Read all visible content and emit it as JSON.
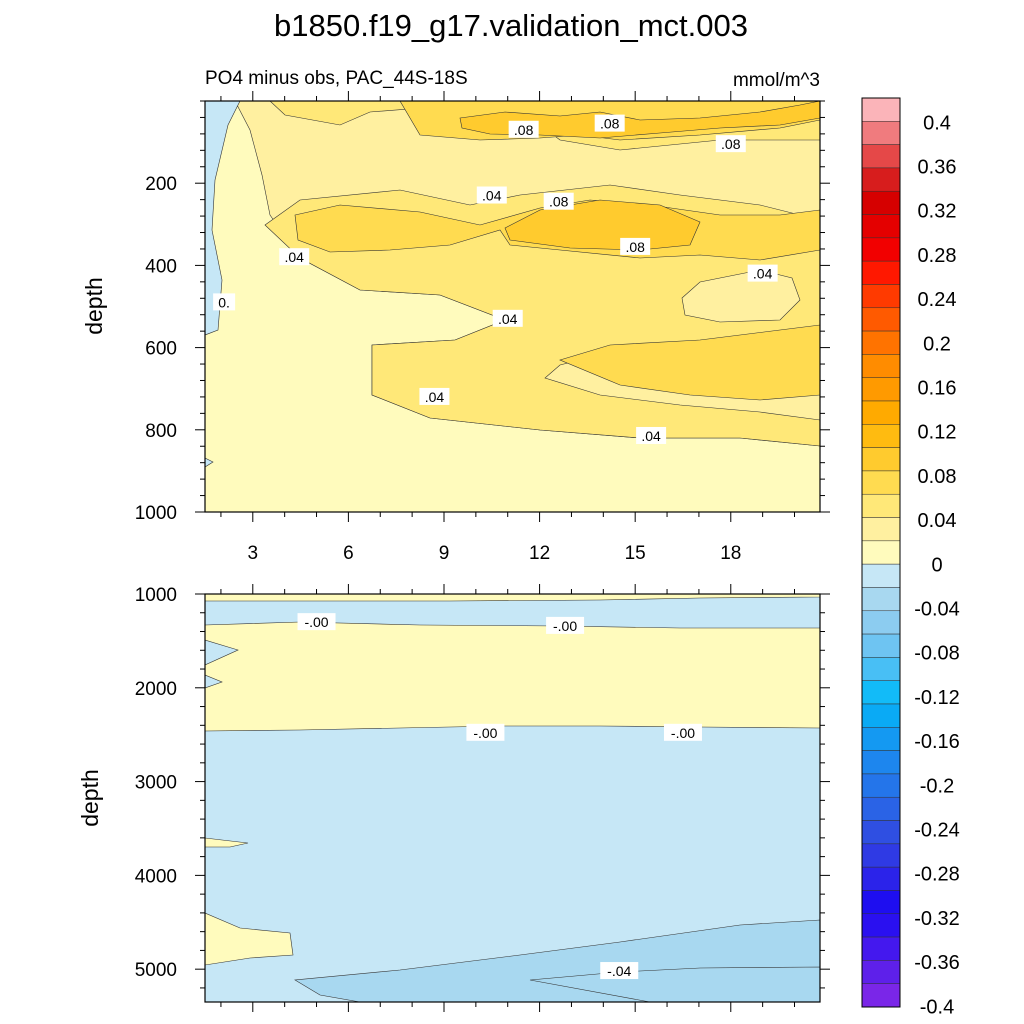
{
  "title": "b1850.f19_g17.validation_mct.003",
  "subtitle_left": "PO4 minus obs, PAC_44S-18S",
  "subtitle_right": "mmol/m^3",
  "chart_data": [
    {
      "type": "heatmap",
      "ylabel": "depth",
      "xlim": [
        1.5,
        20.8
      ],
      "ylim": [
        0,
        1000
      ],
      "y_inverted": true,
      "xticks": [
        "3",
        "6",
        "9",
        "12",
        "15",
        "18"
      ],
      "xtick_values": [
        3,
        6,
        9,
        12,
        15,
        18
      ],
      "yticks": [
        "200",
        "400",
        "600",
        "800",
        "1000"
      ],
      "ytick_values": [
        200,
        400,
        600,
        800,
        1000
      ],
      "contour_labels": [
        {
          "text": ".08",
          "x": 11.5,
          "y": 70
        },
        {
          "text": ".08",
          "x": 14.2,
          "y": 55
        },
        {
          "text": ".08",
          "x": 18.0,
          "y": 105
        },
        {
          "text": ".04",
          "x": 10.5,
          "y": 230
        },
        {
          "text": ".08",
          "x": 12.6,
          "y": 245
        },
        {
          "text": ".08",
          "x": 15.0,
          "y": 355
        },
        {
          "text": ".04",
          "x": 4.3,
          "y": 380
        },
        {
          "text": ".04",
          "x": 19.0,
          "y": 420
        },
        {
          "text": "0.",
          "x": 2.1,
          "y": 490
        },
        {
          "text": ".04",
          "x": 11.0,
          "y": 530
        },
        {
          "text": ".04",
          "x": 8.7,
          "y": 720
        },
        {
          "text": ".04",
          "x": 15.5,
          "y": 815
        }
      ]
    },
    {
      "type": "heatmap",
      "ylabel": "depth",
      "xlim": [
        1.5,
        20.8
      ],
      "ylim": [
        1000,
        5350
      ],
      "y_inverted": true,
      "yticks": [
        "1000",
        "2000",
        "3000",
        "4000",
        "5000"
      ],
      "ytick_values": [
        1000,
        2000,
        3000,
        4000,
        5000
      ],
      "contour_labels": [
        {
          "text": "-.00",
          "x": 5.0,
          "y": 1300
        },
        {
          "text": "-.00",
          "x": 12.8,
          "y": 1340
        },
        {
          "text": "-.00",
          "x": 10.3,
          "y": 2480
        },
        {
          "text": "-.00",
          "x": 16.5,
          "y": 2480
        },
        {
          "text": "-.04",
          "x": 14.5,
          "y": 5020
        }
      ]
    }
  ],
  "colorbar": {
    "labels": [
      "0.4",
      "0.36",
      "0.32",
      "0.28",
      "0.24",
      "0.2",
      "0.16",
      "0.12",
      "0.08",
      "0.04",
      "0",
      "-0.04",
      "-0.08",
      "-0.12",
      "-0.16",
      "-0.2",
      "-0.24",
      "-0.28",
      "-0.32",
      "-0.36",
      "-0.4"
    ],
    "colors": [
      "#fbb4b9",
      "#f07b7e",
      "#e54848",
      "#d71d1d",
      "#d60000",
      "#e40000",
      "#f20000",
      "#ff1800",
      "#ff3a00",
      "#ff5a00",
      "#ff7300",
      "#ff8c00",
      "#ff9a00",
      "#ffaa00",
      "#ffbb10",
      "#ffcb2e",
      "#ffdb50",
      "#ffe878",
      "#fff0a0",
      "#fffbbd",
      "#c6e7f6",
      "#a8d8f0",
      "#8cccf0",
      "#6ec4f2",
      "#48bff5",
      "#12bbf8",
      "#0aaaf5",
      "#1499f2",
      "#1d86ee",
      "#2475ea",
      "#2a63e6",
      "#2f4fe2",
      "#2f3ae4",
      "#2b23ea",
      "#1e0ef0",
      "#2a10f0",
      "#4418ee",
      "#5e20ea",
      "#7a26e8"
    ]
  }
}
